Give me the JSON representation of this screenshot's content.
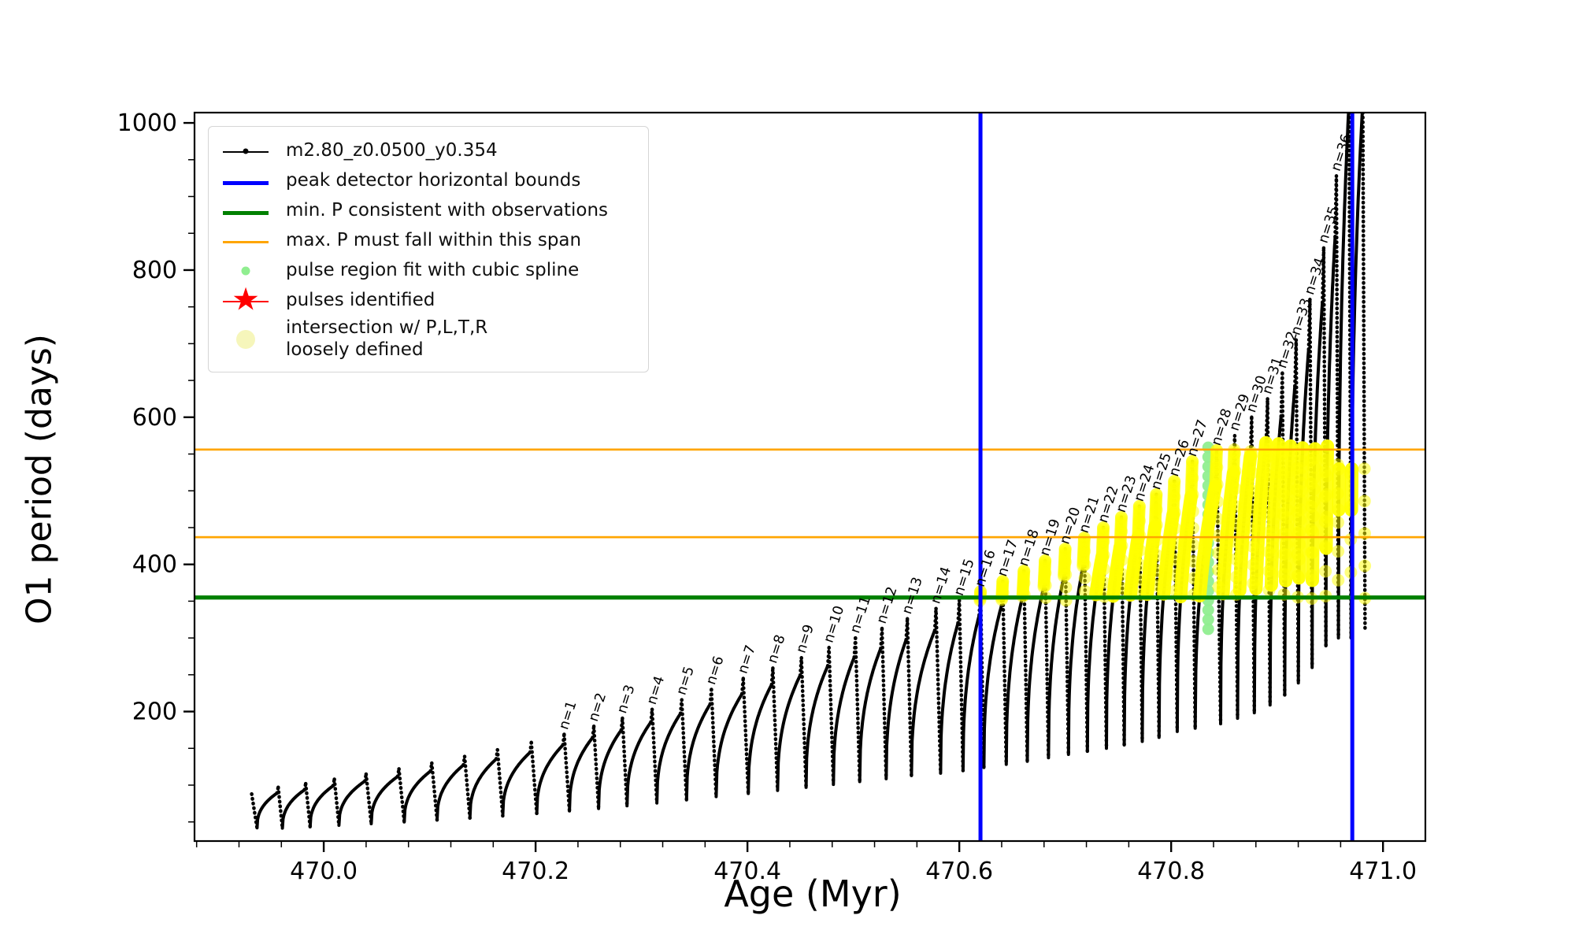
{
  "figure": {
    "bg": "#ffffff"
  },
  "axes": {
    "xlabel": "Age (Myr)",
    "ylabel": "O1 period (days)",
    "xlim": [
      469.878,
      471.04
    ],
    "ylim": [
      24,
      1014
    ],
    "xticks": [
      470.0,
      470.2,
      470.4,
      470.6,
      470.8,
      471.0
    ],
    "xtick_labels": [
      "470.0",
      "470.2",
      "470.4",
      "470.6",
      "470.8",
      "471.0"
    ],
    "xminor_step": 0.04,
    "yticks": [
      200,
      400,
      600,
      800,
      1000
    ],
    "ytick_labels": [
      "200",
      "400",
      "600",
      "800",
      "1000"
    ],
    "yminor_step": 50
  },
  "colors": {
    "series": "#000000",
    "peak_bounds": "#0000ff",
    "min_p": "#008000",
    "max_p_span": "#ffa500",
    "spline_dots": "#90ee90",
    "pulses": "#ff0000",
    "intersection": "#ffff00",
    "intersection_pale": "#f6f6bb"
  },
  "legend": {
    "items": [
      {
        "label": "m2.80_z0.0500_y0.354",
        "marker": "line-dot",
        "color": "#000000"
      },
      {
        "label": "peak detector horizontal bounds",
        "marker": "line-thick",
        "color": "#0000ff"
      },
      {
        "label": "min. P consistent with observations",
        "marker": "line-thick",
        "color": "#008000"
      },
      {
        "label": "max. P must fall within this span",
        "marker": "line-thin",
        "color": "#ffa500"
      },
      {
        "label": "pulse region fit with cubic spline",
        "marker": "dot-small",
        "color": "#90ee90"
      },
      {
        "label": "pulses identified",
        "marker": "star",
        "color": "#ff0000"
      },
      {
        "label": "intersection w/ P,L,T,R\nloosely defined",
        "marker": "dot-large",
        "color": "#f6f6bb"
      }
    ]
  },
  "chart_data": {
    "type": "line",
    "series_name": "m2.80_z0.0500_y0.354",
    "xlabel": "Age (Myr)",
    "ylabel": "O1 period (days)",
    "grid": false,
    "legend_position": "upper left",
    "curve_start": {
      "age": 469.932,
      "period": 88,
      "first_trough": 42
    },
    "peaks": [
      {
        "label": null,
        "age": 469.957,
        "peak_period": 97
      },
      {
        "label": null,
        "age": 469.983,
        "peak_period": 102
      },
      {
        "label": null,
        "age": 470.01,
        "peak_period": 108
      },
      {
        "label": null,
        "age": 470.04,
        "peak_period": 115
      },
      {
        "label": null,
        "age": 470.071,
        "peak_period": 122
      },
      {
        "label": null,
        "age": 470.102,
        "peak_period": 130
      },
      {
        "label": null,
        "age": 470.133,
        "peak_period": 139
      },
      {
        "label": null,
        "age": 470.164,
        "peak_period": 148
      },
      {
        "label": null,
        "age": 470.196,
        "peak_period": 158
      },
      {
        "label": "n=1",
        "age": 470.227,
        "peak_period": 169
      },
      {
        "label": "n=2",
        "age": 470.255,
        "peak_period": 180
      },
      {
        "label": "n=3",
        "age": 470.282,
        "peak_period": 191
      },
      {
        "label": "n=4",
        "age": 470.31,
        "peak_period": 203
      },
      {
        "label": "n=5",
        "age": 470.338,
        "peak_period": 216
      },
      {
        "label": "n=6",
        "age": 470.366,
        "peak_period": 230
      },
      {
        "label": "n=7",
        "age": 470.396,
        "peak_period": 245
      },
      {
        "label": "n=8",
        "age": 470.424,
        "peak_period": 259
      },
      {
        "label": "n=9",
        "age": 470.451,
        "peak_period": 273
      },
      {
        "label": "n=10",
        "age": 470.477,
        "peak_period": 287
      },
      {
        "label": "n=11",
        "age": 470.502,
        "peak_period": 300
      },
      {
        "label": "n=12",
        "age": 470.527,
        "peak_period": 313
      },
      {
        "label": "n=13",
        "age": 470.551,
        "peak_period": 326
      },
      {
        "label": "n=14",
        "age": 470.578,
        "peak_period": 340
      },
      {
        "label": "n=15",
        "age": 470.6,
        "peak_period": 351
      },
      {
        "label": "n=16",
        "age": 470.62,
        "peak_period": 363
      },
      {
        "label": "n=17",
        "age": 470.641,
        "peak_period": 377
      },
      {
        "label": "n=18",
        "age": 470.661,
        "peak_period": 391
      },
      {
        "label": "n=19",
        "age": 470.681,
        "peak_period": 405
      },
      {
        "label": "n=20",
        "age": 470.7,
        "peak_period": 421
      },
      {
        "label": "n=21",
        "age": 470.718,
        "peak_period": 436
      },
      {
        "label": "n=22",
        "age": 470.736,
        "peak_period": 450
      },
      {
        "label": "n=23",
        "age": 470.753,
        "peak_period": 464
      },
      {
        "label": "n=24",
        "age": 470.77,
        "peak_period": 479
      },
      {
        "label": "n=25",
        "age": 470.786,
        "peak_period": 495
      },
      {
        "label": "n=26",
        "age": 470.803,
        "peak_period": 513
      },
      {
        "label": "n=27",
        "age": 470.82,
        "peak_period": 540
      },
      {
        "label": "n=28",
        "age": 470.843,
        "peak_period": 555
      },
      {
        "label": "n=29",
        "age": 470.86,
        "peak_period": 575
      },
      {
        "label": "n=30",
        "age": 470.876,
        "peak_period": 600
      },
      {
        "label": "n=31",
        "age": 470.891,
        "peak_period": 625
      },
      {
        "label": "n=32",
        "age": 470.905,
        "peak_period": 660
      },
      {
        "label": "n=33",
        "age": 470.918,
        "peak_period": 705
      },
      {
        "label": "n=34",
        "age": 470.931,
        "peak_period": 760
      },
      {
        "label": "n=35",
        "age": 470.944,
        "peak_period": 830
      },
      {
        "label": "n=36",
        "age": 470.956,
        "peak_period": 928
      },
      {
        "label": null,
        "age": 470.968,
        "peak_period": 1030
      },
      {
        "label": null,
        "age": 470.981,
        "peak_period": 1030
      }
    ],
    "hlines": [
      {
        "value": 355,
        "color": "#008000",
        "width": 5,
        "meaning": "min. P consistent with observations"
      },
      {
        "value": 437,
        "color": "#ffa500",
        "width": 2.5,
        "meaning": "max. P must fall within this span (lower)"
      },
      {
        "value": 556,
        "color": "#ffa500",
        "width": 2.5,
        "meaning": "max. P must fall within this span (upper)"
      }
    ],
    "vlines": [
      {
        "value": 470.62,
        "color": "#0000ff",
        "width": 5,
        "meaning": "peak detector horizontal bound (left)"
      },
      {
        "value": 470.971,
        "color": "#0000ff",
        "width": 5,
        "meaning": "peak detector horizontal bound (right)"
      }
    ],
    "yellow_intersection_region": {
      "period_min": 355,
      "period_max": 556,
      "age_first_dot": 470.62,
      "age_solid_wedge_start": 470.733,
      "age_end": 470.985
    },
    "green_spline_column": {
      "age": 470.835,
      "period_min": 312,
      "period_max": 564
    },
    "pulses_identified": []
  }
}
